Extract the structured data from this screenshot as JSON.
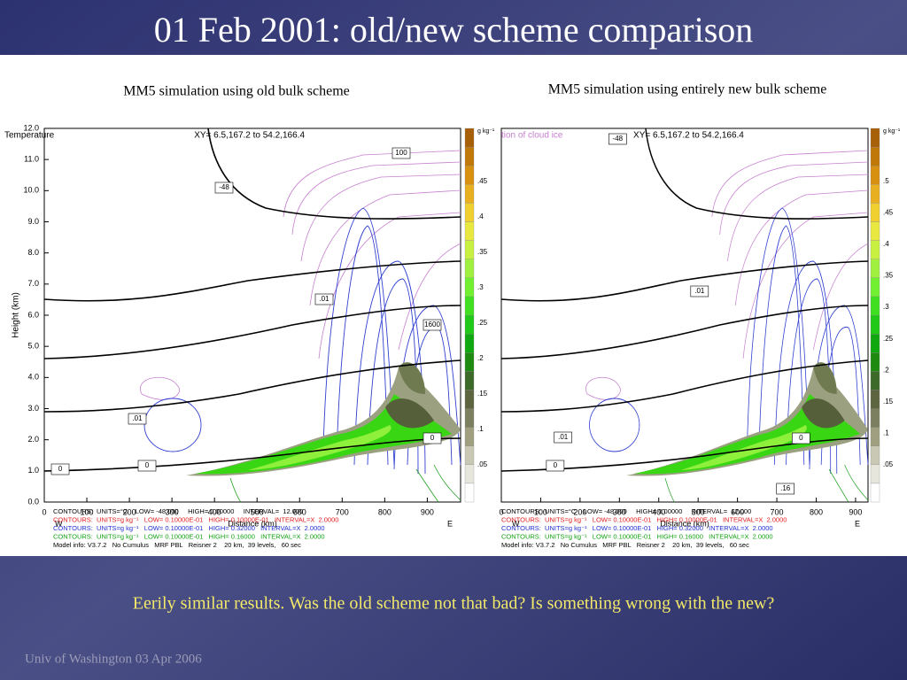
{
  "title": "01 Feb 2001: old/new scheme comparison",
  "panels": [
    {
      "subtitle": "MM5 simulation using old bulk scheme",
      "header": "Temperature",
      "xy": "XY=  6.5,167.2 to  54.2,166.4",
      "units": "g kg⁻¹",
      "y_axis_label": "Height (km)",
      "yticks": [
        "0.0",
        "1.0",
        "2.0",
        "3.0",
        "4.0",
        "5.0",
        "6.0",
        "7.0",
        "8.0",
        "9.0",
        "10.0",
        "11.0",
        "12.0"
      ],
      "xticks": [
        "0",
        "100",
        "200",
        "300",
        "400",
        "500",
        "600",
        "700",
        "800",
        "900"
      ],
      "x_axis_label": "Distance (km)",
      "west": "W",
      "east": "E",
      "colorbar": [
        ".05",
        ".1",
        ".15",
        ".2",
        ".25",
        ".3",
        ".35",
        ".4",
        ".45"
      ],
      "contour_labels": [
        "-48",
        ".01",
        ".01",
        "0",
        "0",
        "0",
        "1600",
        "100"
      ],
      "info": [
        "CONTOURS:  UNITS=°C    LOW= -48.000     HIGH= 0.00000     INTERVAL=  12.000",
        "CONTOURS:  UNITS=g kg⁻¹   LOW= 0.10000E-01   HIGH= 0.10000E-01   INTERVAL=X  2.0000",
        "CONTOURS:  UNITS=g kg⁻¹   LOW= 0.10000E-01   HIGH= 0.32000   INTERVAL=X  2.0000",
        "CONTOURS:  UNITS=g kg⁻¹   LOW= 0.10000E-01   HIGH= 0.16000   INTERVAL=X  2.0000",
        "Model info: V3.7.2   No Cumulus   MRF PBL   Reisner 2    20 km,  39 levels,   60 sec"
      ]
    },
    {
      "subtitle": "MM5 simulation using entirely new bulk scheme",
      "header": "tion of cloud ice",
      "xy": "XY=  6.5,167.2 to  54.2,166.4",
      "units": "g kg⁻¹",
      "xticks": [
        "0",
        "100",
        "200",
        "300",
        "400",
        "500",
        "600",
        "700",
        "800",
        "900"
      ],
      "x_axis_label": "Distance (km)",
      "west": "W",
      "east": "E",
      "colorbar": [
        ".05",
        ".1",
        ".15",
        ".2",
        ".25",
        ".3",
        ".35",
        ".4",
        ".45",
        ".5"
      ],
      "contour_labels": [
        "-48",
        ".01",
        ".01",
        "0",
        "0",
        ".16"
      ],
      "info": [
        "CONTOURS:  UNITS=°C    LOW= -48.000     HIGH= 0.00000     INTERVAL=  12.000",
        "CONTOURS:  UNITS=g kg⁻¹   LOW= 0.10000E-01   HIGH= 0.10000E-01   INTERVAL=X  2.0000",
        "CONTOURS:  UNITS=g kg⁻¹   LOW= 0.10000E-01   HIGH= 0.32000   INTERVAL=X  2.0000",
        "CONTOURS:  UNITS=g kg⁻¹   LOW= 0.10000E-01   HIGH= 0.16000   INTERVAL=X  2.0000",
        "Model info: V3.7.2   No Cumulus   MRF PBL   Reisner 2    20 km,  39 levels,   60 sec"
      ]
    }
  ],
  "caption": "Eerily similar results.  Was the old scheme not that bad?  Is something wrong with the new?",
  "footer": "Univ of Washington 03 Apr 2006"
}
